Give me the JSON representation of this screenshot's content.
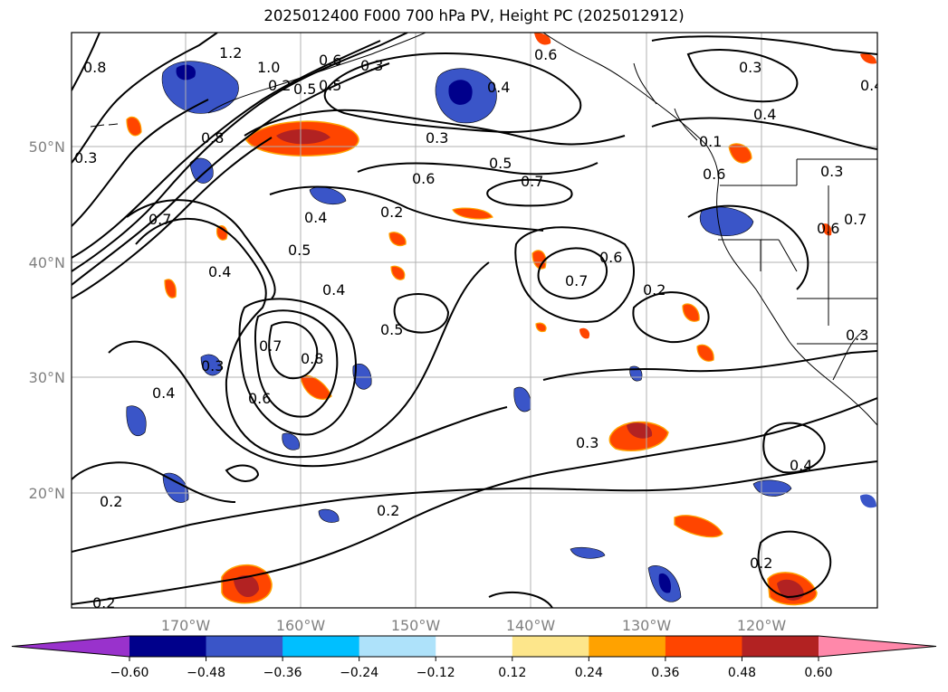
{
  "title": "2025012400 F000 700 hPa PV, Height PC (2025012912)",
  "lon_ticks": [
    "170°W",
    "160°W",
    "150°W",
    "140°W",
    "130°W",
    "120°W"
  ],
  "lat_ticks": [
    "50°N",
    "40°N",
    "30°N",
    "20°N"
  ],
  "contour_labels": [
    "1.2",
    "1.0",
    "0.8",
    "0.6",
    "0.5",
    "0.4",
    "0.3",
    "0.2",
    "0.7",
    "0.6",
    "0.5",
    "0.4",
    "0.3",
    "0.2",
    "0.7",
    "0.8",
    "0.7",
    "0.6",
    "0.3",
    "0.4",
    "0.4",
    "0.2",
    "0.4",
    "0.3",
    "0.6",
    "0.7",
    "0.5",
    "0.6",
    "0.4",
    "0.3",
    "0.2",
    "0.4",
    "0.5",
    "0.8",
    "0.7",
    "0.6",
    "0.3",
    "0.2",
    "0.1",
    "0.3",
    "0.6",
    "0.5",
    "0.4",
    "0.3",
    "0.2",
    "0.2"
  ],
  "colorbar": {
    "ticks": [
      "−0.60",
      "−0.48",
      "−0.36",
      "−0.24",
      "−0.12",
      "0.12",
      "0.24",
      "0.36",
      "0.48",
      "0.60"
    ],
    "colors": [
      "#9932cc",
      "#00008b",
      "#3a55c8",
      "#00bfff",
      "#aee2fa",
      "#ffffff",
      "#fde68b",
      "#ffa200",
      "#ff4500",
      "#b22222",
      "#ff88aa"
    ]
  },
  "colors": {
    "grid": "#b0b0b0",
    "contour": "#000000",
    "coast": "#000000"
  }
}
